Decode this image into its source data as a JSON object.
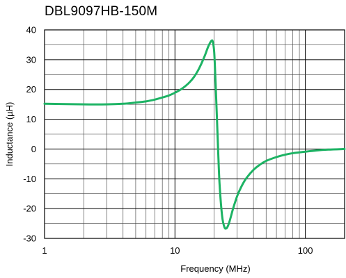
{
  "chart_data": {
    "type": "line",
    "title": "DBL9097HB-150M",
    "xlabel": "Frequency (MHz)",
    "ylabel": "Inductance (µH)",
    "xscale": "log",
    "xlim": [
      1,
      200
    ],
    "ylim": [
      -30,
      40
    ],
    "x_ticks": [
      1,
      10,
      100
    ],
    "x_tick_labels": [
      "1",
      "10",
      "100"
    ],
    "y_ticks": [
      -30,
      -20,
      -10,
      0,
      10,
      20,
      30,
      40
    ],
    "y_tick_labels": [
      "-30",
      "-20",
      "-10",
      "0",
      "10",
      "20",
      "30",
      "40"
    ],
    "grid": true,
    "legend": "none",
    "series": [
      {
        "color": "#1db364",
        "x": [
          1,
          2,
          3,
          4,
          5,
          6,
          7,
          8,
          9,
          10,
          11,
          12,
          13,
          14,
          15,
          16,
          17,
          18,
          19,
          19.5,
          20,
          20.5,
          21,
          21.5,
          22,
          23,
          24,
          25,
          26,
          27,
          28,
          30,
          32,
          35,
          40,
          45,
          50,
          60,
          70,
          80,
          100,
          120,
          150,
          200
        ],
        "y": [
          15.2,
          15.0,
          15.0,
          15.2,
          15.6,
          16.0,
          16.6,
          17.3,
          18.0,
          18.9,
          19.9,
          21.1,
          22.5,
          24.2,
          26.3,
          28.8,
          31.5,
          34.4,
          36.3,
          36.0,
          32.5,
          22.0,
          10.0,
          -2.0,
          -12.0,
          -22.5,
          -26.3,
          -26.5,
          -24.8,
          -22.3,
          -19.8,
          -15.8,
          -13.0,
          -10.0,
          -7.0,
          -5.2,
          -4.0,
          -2.7,
          -1.9,
          -1.4,
          -0.9,
          -0.5,
          -0.2,
          0.0
        ]
      }
    ]
  }
}
